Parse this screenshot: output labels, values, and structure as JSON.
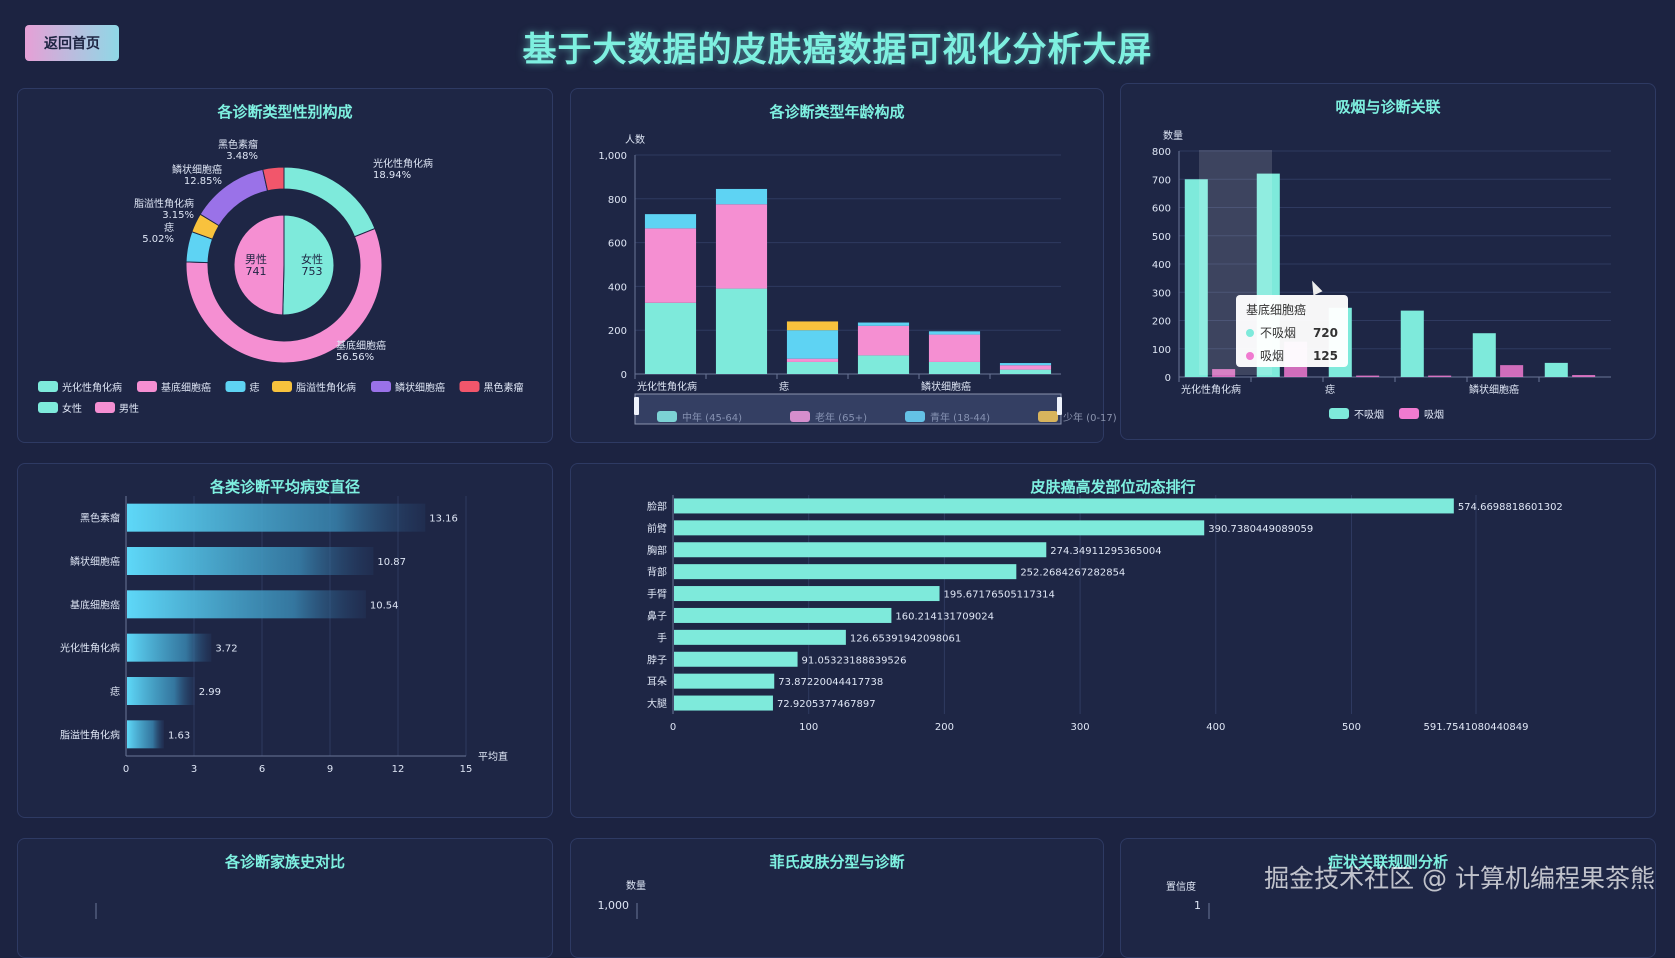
{
  "header": {
    "back_label": "返回首页",
    "title": "基于大数据的皮肤癌数据可视化分析大屏"
  },
  "panels": {
    "gender": "各诊断类型性别构成",
    "age": "各诊断类型年龄构成",
    "smoke": "吸烟与诊断关联",
    "diameter": "各类诊断平均病变直径",
    "site": "皮肤癌高发部位动态排行",
    "family": "各诊断家族史对比",
    "fitz": "菲氏皮肤分型与诊断",
    "rules": "症状关联规则分析"
  },
  "tooltip": {
    "title": "基底细胞癌",
    "rows": [
      {
        "label": "不吸烟",
        "value": "720",
        "color": "#7eeadb"
      },
      {
        "label": "吸烟",
        "value": "125",
        "color": "#f07ad0"
      }
    ]
  },
  "watermark": "掘金技术社区 @ 计算机编程果茶熊",
  "chart_data": [
    {
      "id": "gender",
      "type": "pie",
      "outer": [
        {
          "name": "光化性角化病",
          "label": "光化性角化病\n18.94%",
          "value": 18.94,
          "color": "#7eeadb"
        },
        {
          "name": "基底细胞癌",
          "label": "基底细胞癌\n56.56%",
          "value": 56.56,
          "color": "#f58fd2"
        },
        {
          "name": "痣",
          "label": "痣\n5.02%",
          "value": 5.02,
          "color": "#5ed3f3"
        },
        {
          "name": "脂溢性角化病",
          "label": "脂溢性角化病\n3.15%",
          "value": 3.15,
          "color": "#f8c23d"
        },
        {
          "name": "鳞状细胞癌",
          "label": "鳞状细胞癌\n12.85%",
          "value": 12.85,
          "color": "#9a72e8"
        },
        {
          "name": "黑色素瘤",
          "label": "黑色素瘤\n3.48%",
          "value": 3.48,
          "color": "#f2566b"
        }
      ],
      "inner": [
        {
          "name": "女性",
          "label": "女性\n753",
          "value": 753,
          "color": "#7eeadb"
        },
        {
          "name": "男性",
          "label": "男性\n741",
          "value": 741,
          "color": "#f58fd2"
        }
      ]
    },
    {
      "id": "age",
      "type": "bar",
      "ylabel": "人数",
      "ylim": [
        0,
        1000
      ],
      "yticks": [
        "0",
        "200",
        "400",
        "600",
        "800",
        "1,000"
      ],
      "categories": [
        "光化性角化病",
        "基底细胞癌",
        "痣",
        "脂溢性角化病",
        "鳞状细胞癌",
        "黑色素瘤"
      ],
      "xtick_labels": [
        "光化性角化病",
        "",
        "痣",
        "",
        "鳞状细胞癌",
        ""
      ],
      "series": [
        {
          "name": "中年 (45-64)",
          "color": "#7eeadb",
          "values": [
            325,
            390,
            55,
            85,
            55,
            20
          ]
        },
        {
          "name": "老年 (65+)",
          "color": "#f58fd2",
          "values": [
            340,
            385,
            15,
            135,
            125,
            20
          ]
        },
        {
          "name": "青年 (18-44)",
          "color": "#5ed3f3",
          "values": [
            65,
            70,
            130,
            15,
            15,
            10
          ]
        },
        {
          "name": "少年 (0-17)",
          "color": "#f8c23d",
          "values": [
            0,
            0,
            40,
            0,
            0,
            0
          ]
        }
      ]
    },
    {
      "id": "smoke",
      "type": "bar",
      "ylabel": "数量",
      "ylim": [
        0,
        800
      ],
      "yticks": [
        "0",
        "100",
        "200",
        "300",
        "400",
        "500",
        "600",
        "700",
        "800"
      ],
      "categories": [
        "光化性角化病",
        "基底细胞癌",
        "痣",
        "脂溢性角化病",
        "鳞状细胞癌",
        "黑色素瘤"
      ],
      "xtick_labels": [
        "光化性角化病",
        "",
        "痣",
        "",
        "鳞状细胞癌",
        ""
      ],
      "series": [
        {
          "name": "不吸烟",
          "color": "#7eeadb",
          "values": [
            700,
            720,
            245,
            235,
            155,
            50
          ]
        },
        {
          "name": "吸烟",
          "color": "#f07ad0",
          "values": [
            28,
            125,
            5,
            5,
            42,
            7
          ]
        }
      ]
    },
    {
      "id": "diameter",
      "type": "bar",
      "orientation": "horizontal",
      "xlabel": "平均直",
      "xlim": [
        0,
        15
      ],
      "xticks": [
        "0",
        "3",
        "6",
        "9",
        "12",
        "15"
      ],
      "categories": [
        "黑色素瘤",
        "鳞状细胞癌",
        "基底细胞癌",
        "光化性角化病",
        "痣",
        "脂溢性角化病"
      ],
      "values": [
        13.16,
        10.87,
        10.54,
        3.72,
        2.99,
        1.63
      ],
      "labels": [
        "13.16",
        "10.87",
        "10.54",
        "3.72",
        "2.99",
        "1.63"
      ]
    },
    {
      "id": "site",
      "type": "bar",
      "orientation": "horizontal",
      "xlim": [
        0,
        591.7541080440849
      ],
      "xticks": [
        "0",
        "100",
        "200",
        "300",
        "400",
        "500",
        "591.7541080440849"
      ],
      "xtick_values": [
        0,
        100,
        200,
        300,
        400,
        500,
        591.7541080440849
      ],
      "categories": [
        "脸部",
        "前臂",
        "胸部",
        "背部",
        "手臂",
        "鼻子",
        "手",
        "脖子",
        "耳朵",
        "大腿"
      ],
      "values": [
        574.6698818601302,
        390.7380449089059,
        274.34911295365004,
        252.2684267282854,
        195.67176505117314,
        160.214131709024,
        126.65391942098061,
        91.05323188839526,
        73.87220044417738,
        72.9205377467897
      ],
      "labels": [
        "574.6698818601302",
        "390.7380449089059",
        "274.34911295365004",
        "252.2684267282854",
        "195.67176505117314",
        "160.214131709024",
        "126.65391942098061",
        "91.05323188839526",
        "73.87220044417738",
        "72.9205377467897"
      ]
    },
    {
      "id": "fitz",
      "type": "bar",
      "ylabel": "数量",
      "yticks": [
        "1,000"
      ]
    },
    {
      "id": "rules",
      "type": "bar",
      "ylabel": "置信度",
      "yticks": [
        "1"
      ]
    }
  ]
}
